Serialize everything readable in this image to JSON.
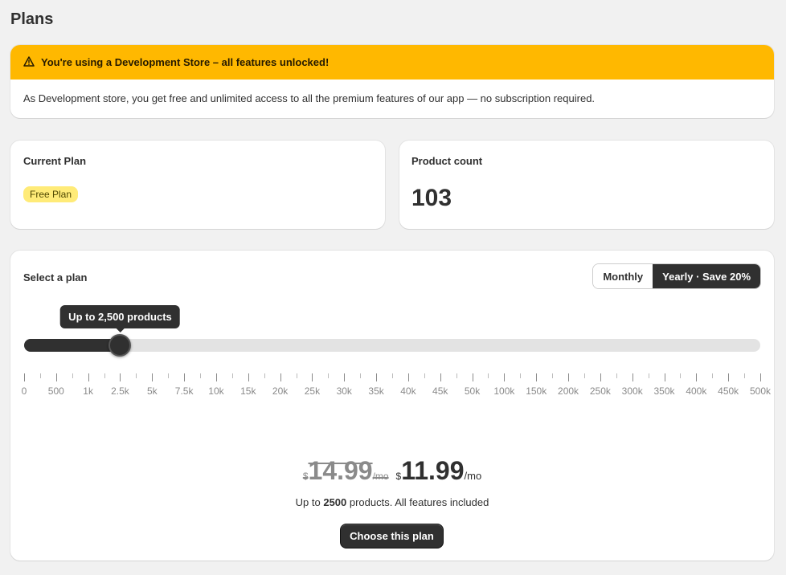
{
  "page": {
    "title": "Plans"
  },
  "banner": {
    "icon": "warning-icon",
    "title": "You're using a Development Store – all features unlocked!",
    "message": "As Development store, you get free and unlimited access to all the premium features of our app — no subscription required.",
    "color": "#ffb800"
  },
  "current_plan": {
    "label": "Current Plan",
    "badge": "Free Plan"
  },
  "product_count": {
    "label": "Product count",
    "value": "103"
  },
  "selector": {
    "title": "Select a plan",
    "billing": {
      "monthly": "Monthly",
      "yearly": "Yearly · Save 20%",
      "selected": "yearly"
    },
    "tooltip": "Up to 2,500 products",
    "slider_index": 3,
    "ticks": [
      "0",
      "500",
      "1k",
      "2.5k",
      "5k",
      "7.5k",
      "10k",
      "15k",
      "20k",
      "25k",
      "30k",
      "35k",
      "40k",
      "45k",
      "50k",
      "100k",
      "150k",
      "200k",
      "250k",
      "300k",
      "350k",
      "400k",
      "450k",
      "500k"
    ],
    "price": {
      "old_currency": "$",
      "old_amount": "14.99",
      "old_unit": "/mo",
      "currency": "$",
      "amount": "11.99",
      "unit": "/mo"
    },
    "desc_pre": "Up to ",
    "desc_count": "2500",
    "desc_post": " products. All features included",
    "choose_label": "Choose this plan"
  }
}
